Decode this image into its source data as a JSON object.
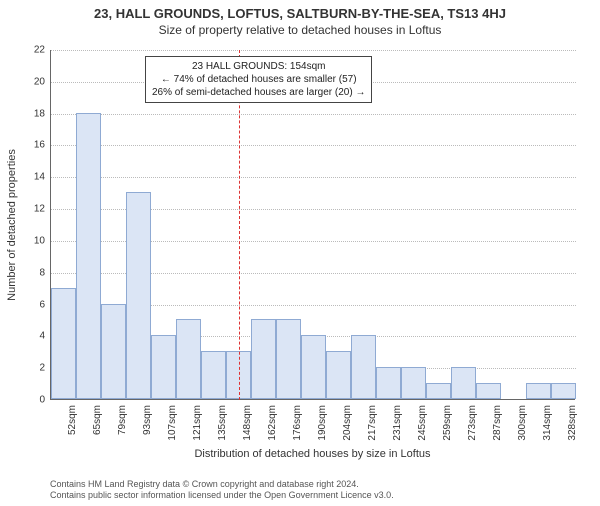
{
  "title_line1": "23, HALL GROUNDS, LOFTUS, SALTBURN-BY-THE-SEA, TS13 4HJ",
  "title_line2": "Size of property relative to detached houses in Loftus",
  "ylabel": "Number of detached properties",
  "xlabel": "Distribution of detached houses by size in Loftus",
  "chart": {
    "type": "histogram",
    "bar_color": "#dbe5f5",
    "bar_border_color": "#8faad3",
    "grid_color": "#bbbbbb",
    "axis_color": "#666666",
    "refline_color": "#d33",
    "background": "#ffffff",
    "ylim": [
      0,
      22
    ],
    "yticks": [
      0,
      2,
      4,
      6,
      8,
      10,
      12,
      14,
      16,
      18,
      20,
      22
    ],
    "xticks": [
      "52sqm",
      "65sqm",
      "79sqm",
      "93sqm",
      "107sqm",
      "121sqm",
      "135sqm",
      "148sqm",
      "162sqm",
      "176sqm",
      "190sqm",
      "204sqm",
      "217sqm",
      "231sqm",
      "245sqm",
      "259sqm",
      "273sqm",
      "287sqm",
      "300sqm",
      "314sqm",
      "328sqm"
    ],
    "values": [
      7,
      18,
      6,
      13,
      4,
      5,
      3,
      3,
      5,
      5,
      4,
      3,
      4,
      2,
      2,
      1,
      2,
      1,
      0,
      1,
      1
    ],
    "ref_index": 7.5,
    "ref_value_sqm": 154
  },
  "annotation": {
    "line1": "23 HALL GROUNDS: 154sqm",
    "line2": "← 74% of detached houses are smaller (57)",
    "line3": "26% of semi-detached houses are larger (20) →"
  },
  "footer": {
    "line1": "Contains HM Land Registry data © Crown copyright and database right 2024.",
    "line2": "Contains public sector information licensed under the Open Government Licence v3.0."
  }
}
